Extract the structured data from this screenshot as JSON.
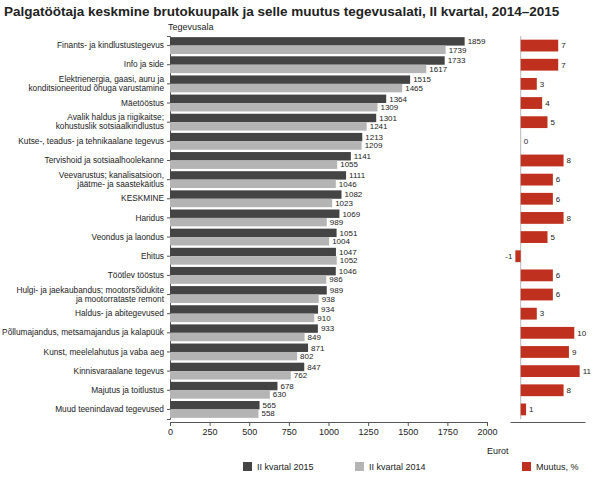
{
  "chart_data": [
    {
      "type": "bar",
      "title": "Palgatöötaja keskmine brutokuupalk ja selle muutus tegevusalati, II kvartal, 2014–2015",
      "xlabel": "Eurot",
      "ylabel": "Tegevusala",
      "orientation": "horizontal",
      "data_labels": true,
      "grid": false,
      "legend": "bottom",
      "categories": [
        "Finants- ja kindlustustegevus",
        "Info ja side",
        "Elektrienergia, gaasi, auru ja\nkonditsioneeritud õhuga varustamine",
        "Mäetööstus",
        "Avalik haldus ja riigikaitse;\nkohustuslik sotsiaalkindlustus",
        "Kutse-, teadus- ja tehnikaalane tegevus",
        "Tervishoid ja sotsiaalhoolekanne",
        "Veevarustus; kanalisatsioon,\njäätme- ja saastekäitlus",
        "KESKMINE",
        "Haridus",
        "Veondus ja laondus",
        "Ehitus",
        "Töötlev tööstus",
        "Hulgi- ja jaekaubandus; mootorsõidukite\nja mootorrataste remont",
        "Haldus- ja abitegevused",
        "Põllumajandus, metsamajandus ja kalapüük",
        "Kunst, meelelahutus ja vaba aeg",
        "Kinnisvaraalane tegevus",
        "Majutus ja toitlustus",
        "Muud teenindavad tegevused"
      ],
      "series": [
        {
          "name": "II kvartal 2015",
          "color": "#444444",
          "values": [
            1859,
            1733,
            1515,
            1364,
            1301,
            1213,
            1141,
            1111,
            1082,
            1069,
            1051,
            1047,
            1046,
            989,
            934,
            933,
            871,
            847,
            678,
            565
          ]
        },
        {
          "name": "II kvartal 2014",
          "color": "#b4b4b4",
          "values": [
            1739,
            1617,
            1465,
            1309,
            1241,
            1209,
            1055,
            1046,
            1023,
            989,
            1004,
            1052,
            986,
            938,
            910,
            849,
            802,
            762,
            630,
            558
          ]
        }
      ],
      "xlim": [
        0,
        2000
      ],
      "xticks": [
        0,
        250,
        500,
        750,
        1000,
        1250,
        1500,
        1750,
        2000
      ]
    },
    {
      "type": "bar",
      "orientation": "horizontal",
      "data_labels": true,
      "tick_labels": false,
      "legend": "bottom",
      "series": [
        {
          "name": "Muutus, %",
          "color": "#c0301e",
          "values": [
            7,
            7,
            3,
            4,
            5,
            0,
            8,
            6,
            6,
            8,
            5,
            -1,
            6,
            6,
            3,
            10,
            9,
            11,
            8,
            1
          ]
        }
      ],
      "xlim": [
        -2,
        12
      ],
      "xticks": []
    }
  ]
}
